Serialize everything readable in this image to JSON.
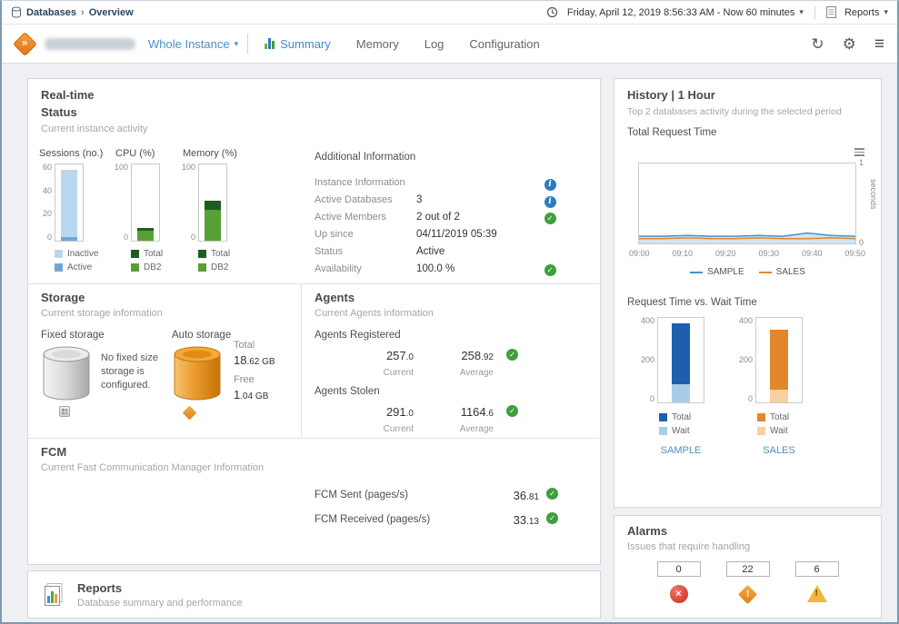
{
  "breadcrumb": {
    "root": "Databases",
    "current": "Overview"
  },
  "topbar": {
    "time_range": "Friday, April 12, 2019 8:56:33 AM - Now 60 minutes",
    "reports": "Reports"
  },
  "header": {
    "scope": "Whole Instance",
    "tabs": [
      {
        "label": "Summary",
        "active": true
      },
      {
        "label": "Memory",
        "active": false
      },
      {
        "label": "Log",
        "active": false
      },
      {
        "label": "Configuration",
        "active": false
      }
    ]
  },
  "realtime": {
    "title": "Real-time",
    "title2": "Status",
    "subtitle": "Current instance activity",
    "additional": {
      "title": "Additional Information",
      "rows": [
        {
          "label": "Instance Information",
          "value": ""
        },
        {
          "label": "Active Databases",
          "value": "3"
        },
        {
          "label": "Active Members",
          "value": "2 out of 2"
        },
        {
          "label": "Up since",
          "value": "04/11/2019 05:39"
        },
        {
          "label": "Status",
          "value": "Active"
        },
        {
          "label": "Availability",
          "value": "100.0 %"
        }
      ]
    }
  },
  "storage": {
    "title": "Storage",
    "subtitle": "Current storage information",
    "fixed_label": "Fixed storage",
    "fixed_note": "No fixed size storage is configured.",
    "auto_label": "Auto storage",
    "total_label": "Total",
    "total_value": [
      "18",
      ".62 GB"
    ],
    "free_label": "Free",
    "free_value": [
      "1",
      ".04 GB"
    ]
  },
  "agents": {
    "title": "Agents",
    "subtitle": "Current Agents information",
    "current_label": "Current",
    "average_label": "Average",
    "registered": {
      "label": "Agents Registered",
      "current": [
        "257",
        ".0"
      ],
      "average": [
        "258",
        ".92"
      ]
    },
    "stolen": {
      "label": "Agents Stolen",
      "current": [
        "291",
        ".0"
      ],
      "average": [
        "1164",
        ".6"
      ]
    }
  },
  "fcm": {
    "title": "FCM",
    "subtitle": "Current Fast Communication Manager Information",
    "rows": [
      {
        "label": "FCM Sent (pages/s)",
        "value": [
          "36",
          ".81"
        ]
      },
      {
        "label": "FCM Received (pages/s)",
        "value": [
          "33",
          ".13"
        ]
      }
    ]
  },
  "reports_panel": {
    "title": "Reports",
    "subtitle": "Database summary and performance"
  },
  "history": {
    "title": "History | 1 Hour",
    "subtitle": "Top 2 databases activity during the selected period",
    "request_label": "Total Request Time",
    "vs_label": "Request Time vs. Wait Time"
  },
  "alarms": {
    "title": "Alarms",
    "subtitle": "Issues that require handling",
    "counts": [
      {
        "severity": "fatal",
        "value": "0"
      },
      {
        "severity": "critical",
        "value": "22"
      },
      {
        "severity": "warning",
        "value": "6"
      }
    ]
  },
  "icons": {
    "caret_down": "▾",
    "breadcrumb_sep": "›",
    "check": "✓",
    "info": "i",
    "refresh": "↻",
    "gear": "⚙",
    "menu": "≡",
    "error_x": "×",
    "exclamation": "!",
    "chevrons": "»"
  },
  "chart_data": [
    {
      "id": "sessions",
      "type": "bar",
      "title": "Sessions (no.)",
      "ymax": 60,
      "yticks": [
        "60",
        "40",
        "20",
        "0"
      ],
      "series": [
        {
          "name": "Active",
          "value": 3,
          "color": "#6fa8d8"
        },
        {
          "name": "Inactive",
          "value": 53,
          "color": "#b9d8ef"
        }
      ],
      "legend": [
        {
          "label": "Inactive",
          "color": "#b9d8ef"
        },
        {
          "label": "Active",
          "color": "#6fa8d8"
        }
      ]
    },
    {
      "id": "cpu",
      "type": "bar",
      "title": "CPU (%)",
      "ymax": 100,
      "yticks": [
        "100",
        "0"
      ],
      "series": [
        {
          "name": "DB2",
          "value": 13,
          "color": "#58a035"
        },
        {
          "name": "Total",
          "value": 4,
          "color": "#205c20"
        }
      ],
      "legend": [
        {
          "label": "Total",
          "color": "#205c20"
        },
        {
          "label": "DB2",
          "color": "#58a035"
        }
      ]
    },
    {
      "id": "memory",
      "type": "bar",
      "title": "Memory (%)",
      "ymax": 100,
      "yticks": [
        "100",
        "0"
      ],
      "series": [
        {
          "name": "DB2",
          "value": 40,
          "color": "#58a035"
        },
        {
          "name": "Total",
          "value": 13,
          "color": "#205c20"
        }
      ],
      "legend": [
        {
          "label": "Total",
          "color": "#205c20"
        },
        {
          "label": "DB2",
          "color": "#58a035"
        }
      ]
    },
    {
      "id": "total_request_time",
      "type": "line",
      "title": "Total Request Time",
      "ylabel": "seconds",
      "ymax": 1,
      "yticks": [
        "1",
        "0"
      ],
      "xticks": [
        "09:00",
        "09:10",
        "09:20",
        "09:30",
        "09:40",
        "09:50"
      ],
      "series": [
        {
          "name": "SAMPLE",
          "color": "#4a90c8",
          "area": true,
          "values": [
            0.09,
            0.09,
            0.1,
            0.09,
            0.09,
            0.1,
            0.09,
            0.13,
            0.1,
            0.09
          ]
        },
        {
          "name": "SALES",
          "color": "#e2872b",
          "values": [
            0.06,
            0.06,
            0.07,
            0.06,
            0.06,
            0.07,
            0.06,
            0.06,
            0.07,
            0.06
          ]
        }
      ]
    },
    {
      "id": "sample_request_vs_wait",
      "type": "stacked-bar",
      "ymax": 400,
      "yticks": [
        "400",
        "200",
        "0"
      ],
      "series": [
        {
          "name": "Wait",
          "value": 85,
          "color": "#a9cde9"
        },
        {
          "name": "Total",
          "value": 290,
          "color": "#1c60ad"
        }
      ],
      "legend": [
        {
          "label": "Total",
          "color": "#1c60ad"
        },
        {
          "label": "Wait",
          "color": "#a9cde9"
        }
      ],
      "link": "SAMPLE"
    },
    {
      "id": "sales_request_vs_wait",
      "type": "stacked-bar",
      "ymax": 400,
      "yticks": [
        "400",
        "200",
        "0"
      ],
      "series": [
        {
          "name": "Wait",
          "value": 60,
          "color": "#f6d1a1"
        },
        {
          "name": "Total",
          "value": 285,
          "color": "#e2872b"
        }
      ],
      "legend": [
        {
          "label": "Total",
          "color": "#e2872b"
        },
        {
          "label": "Wait",
          "color": "#f6d1a1"
        }
      ],
      "link": "SALES"
    }
  ]
}
